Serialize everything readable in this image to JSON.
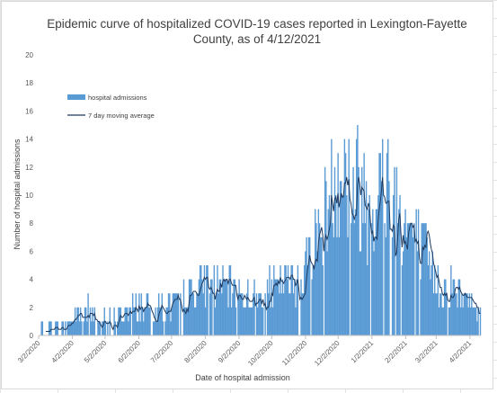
{
  "chart_data": {
    "type": "bar",
    "title_lines": [
      "Epidemic curve of hospitalized COVID-19 cases reported in Lexington-Fayette",
      "County, as of 4/12/2021"
    ],
    "xlabel": "Date of hospital admission",
    "ylabel": "Number of hospital admissions",
    "ylim": [
      0,
      20
    ],
    "y_ticks": [
      "0",
      "2",
      "4",
      "6",
      "8",
      "10",
      "12",
      "14",
      "16",
      "18",
      "20"
    ],
    "x_ticks": [
      "3/2/2020",
      "4/2/2020",
      "5/2/2020",
      "6/2/2020",
      "7/2/2020",
      "8/2/2020",
      "9/2/2020",
      "10/2/2020",
      "11/2/2020",
      "12/2/2020",
      "1/2/2021",
      "2/2/2021",
      "3/2/2021",
      "4/2/2021"
    ],
    "x_start": "3/2/2020",
    "x_end": "4/12/2021",
    "legend_position": "top-left",
    "series": [
      {
        "name": "hospital admissions",
        "kind": "bar",
        "color": "#5b9bd5"
      },
      {
        "name": "7 day moving average",
        "kind": "line",
        "color": "#1f3a5f"
      }
    ],
    "monthly_profile": [
      {
        "date": "3/2/2020",
        "level": 0.2
      },
      {
        "date": "3/20/2020",
        "level": 0.5
      },
      {
        "date": "4/2/2020",
        "level": 1.2
      },
      {
        "date": "4/15/2020",
        "level": 1.9
      },
      {
        "date": "5/2/2020",
        "level": 0.6
      },
      {
        "date": "5/20/2020",
        "level": 1.5
      },
      {
        "date": "6/2/2020",
        "level": 2.2
      },
      {
        "date": "6/20/2020",
        "level": 2.0
      },
      {
        "date": "7/2/2020",
        "level": 2.2
      },
      {
        "date": "7/20/2020",
        "level": 3.0
      },
      {
        "date": "8/2/2020",
        "level": 3.8
      },
      {
        "date": "8/20/2020",
        "level": 3.5
      },
      {
        "date": "9/2/2020",
        "level": 3.0
      },
      {
        "date": "9/20/2020",
        "level": 3.0
      },
      {
        "date": "10/2/2020",
        "level": 3.2
      },
      {
        "date": "10/20/2020",
        "level": 4.0
      },
      {
        "date": "11/2/2020",
        "level": 5.0
      },
      {
        "date": "11/20/2020",
        "level": 8.5
      },
      {
        "date": "12/2/2020",
        "level": 12.5
      },
      {
        "date": "12/15/2020",
        "level": 11.0
      },
      {
        "date": "1/2/2021",
        "level": 9.5
      },
      {
        "date": "1/15/2021",
        "level": 11.5
      },
      {
        "date": "2/2/2021",
        "level": 8.0
      },
      {
        "date": "2/15/2021",
        "level": 6.5
      },
      {
        "date": "3/2/2021",
        "level": 3.8
      },
      {
        "date": "3/20/2021",
        "level": 3.2
      },
      {
        "date": "4/2/2021",
        "level": 2.5
      },
      {
        "date": "4/12/2021",
        "level": 2.0
      }
    ]
  }
}
